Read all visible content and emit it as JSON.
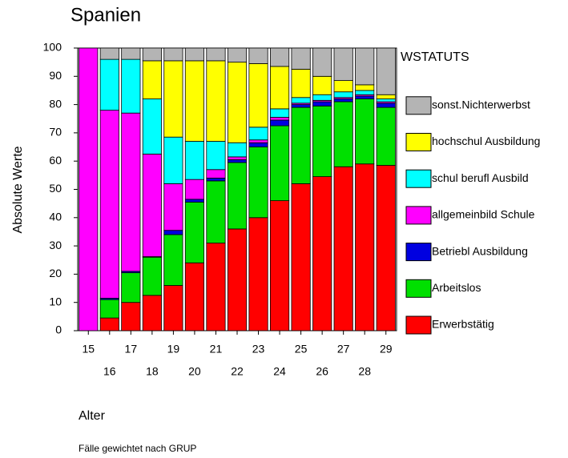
{
  "chart_data": {
    "type": "stacked_bar",
    "title": "Spanien",
    "xlabel": "Alter",
    "ylabel": "Absolute Werte",
    "legend_title": "WSTATUTS",
    "footnote": "Fälle gewichtet nach GRUP",
    "categories": [
      15,
      16,
      17,
      18,
      19,
      20,
      21,
      22,
      23,
      24,
      25,
      26,
      27,
      28,
      29
    ],
    "ylim": [
      0,
      100
    ],
    "yticks": [
      0,
      10,
      20,
      30,
      40,
      50,
      60,
      70,
      80,
      90,
      100
    ],
    "legend": "right",
    "series": [
      {
        "name": "Erwerbstätig",
        "color": "#ff0000",
        "values": [
          0,
          4.5,
          10,
          12.5,
          16,
          24,
          31,
          36,
          40,
          46,
          52,
          54.5,
          58,
          59,
          58.5
        ]
      },
      {
        "name": "Arbeitslos",
        "color": "#00e000",
        "values": [
          0,
          6.5,
          10.5,
          13.5,
          18,
          21.5,
          22,
          23.5,
          25,
          26.5,
          27,
          25,
          23,
          23,
          20.5
        ]
      },
      {
        "name": "Betriebl Ausbildung",
        "color": "#0000e0",
        "values": [
          0,
          0.5,
          0.5,
          0.2,
          1.5,
          1,
          1,
          1,
          1.5,
          2,
          1,
          1.5,
          1,
          1,
          1.5
        ]
      },
      {
        "name": "allgemeinbild Schule",
        "color": "#ff00ff",
        "values": [
          100,
          66.5,
          56,
          36.3,
          16.5,
          7,
          3,
          1,
          1,
          1,
          0.5,
          0.5,
          0.5,
          0.5,
          0.5
        ]
      },
      {
        "name": "schul berufl Ausbild",
        "color": "#00ffff",
        "values": [
          0,
          18,
          19,
          19.5,
          16.5,
          13.5,
          10,
          5,
          4.5,
          3,
          2,
          2,
          2,
          1.5,
          1
        ]
      },
      {
        "name": "hochschul Ausbildung",
        "color": "#ffff00",
        "values": [
          0,
          0,
          0,
          13.5,
          27,
          28.5,
          28.5,
          28.5,
          22.5,
          15,
          10,
          6.5,
          4,
          2,
          1.5
        ]
      },
      {
        "name": "sonst.Nichterwerbst",
        "color": "#b4b4b4",
        "values": [
          0,
          4,
          4,
          4.5,
          4.5,
          4.5,
          4.5,
          5,
          5.5,
          6.5,
          7.5,
          10,
          11.5,
          13,
          16.5
        ]
      }
    ]
  }
}
